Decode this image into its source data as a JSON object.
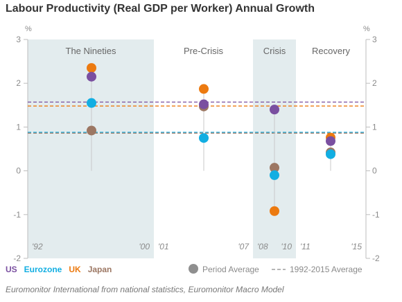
{
  "title": "Labour Productivity (Real GDP per Worker) Annual Growth",
  "source": "Euromonitor International from national statistics, Euromonitor Macro Model",
  "colors": {
    "US": "#7a4fa0",
    "Eurozone": "#12aee2",
    "UK": "#ec7a10",
    "Japan": "#9c7763",
    "period_average_marker": "#8f8f8f",
    "band": "#e3ecee",
    "axis": "#bdbdbd",
    "label": "#8a8a8a"
  },
  "chart_data": {
    "type": "scatter",
    "title": "Labour Productivity (Real GDP per Worker) Annual Growth",
    "unit_left": "%",
    "unit_right": "%",
    "ylim": [
      -2,
      3
    ],
    "yticks": [
      3,
      2,
      1,
      0,
      -1,
      -2
    ],
    "grid": false,
    "periods": [
      {
        "name": "The Nineties",
        "start_label": "'92",
        "end_label": "'00",
        "shaded": true
      },
      {
        "name": "Pre-Crisis",
        "start_label": "'01",
        "end_label": "'07",
        "shaded": false
      },
      {
        "name": "Crisis",
        "start_label": "'08",
        "end_label": "'10",
        "shaded": true
      },
      {
        "name": "Recovery",
        "start_label": "'11",
        "end_label": "'15",
        "shaded": false
      }
    ],
    "series": [
      {
        "name": "US",
        "values": [
          2.15,
          1.52,
          1.4,
          0.68
        ]
      },
      {
        "name": "Eurozone",
        "values": [
          1.55,
          0.75,
          -0.1,
          0.38
        ]
      },
      {
        "name": "UK",
        "values": [
          2.35,
          1.87,
          -0.92,
          0.76
        ]
      },
      {
        "name": "Japan",
        "values": [
          0.92,
          1.47,
          0.07,
          0.42
        ]
      }
    ],
    "averages_1992_2015": [
      {
        "name": "US",
        "value": 1.57
      },
      {
        "name": "Eurozone",
        "value": 0.88
      },
      {
        "name": "UK",
        "value": 1.48
      },
      {
        "name": "Japan",
        "value": 0.86
      }
    ],
    "legend": {
      "position": "bottom",
      "series_order": [
        "US",
        "Eurozone",
        "UK",
        "Japan"
      ],
      "marker_label": "Period Average",
      "line_label": "1992-2015 Average"
    }
  }
}
